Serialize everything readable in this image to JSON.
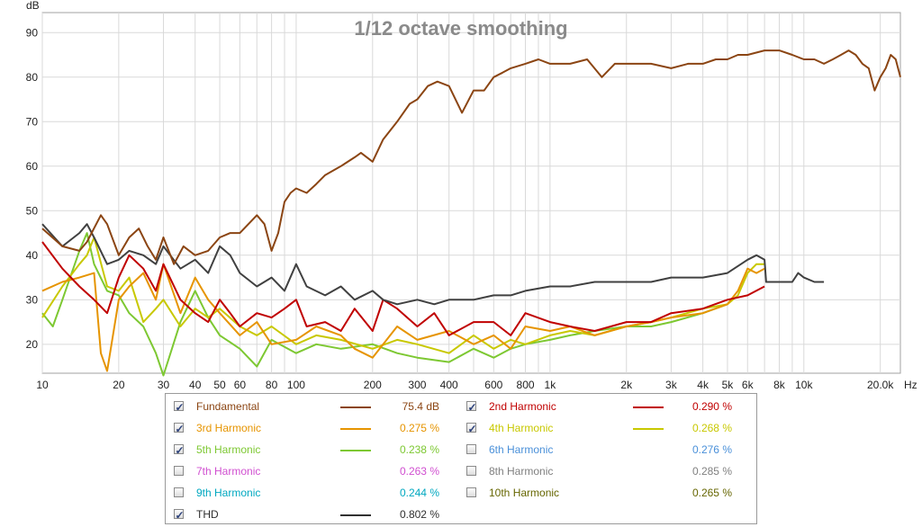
{
  "chart_data": {
    "type": "line",
    "title": "1/12 octave smoothing",
    "ylabel": "dB",
    "xunit": "Hz",
    "xscale": "log",
    "xlim": [
      10,
      24000
    ],
    "ylim": [
      13.5,
      94.5
    ],
    "grid": true,
    "yticks": [
      20,
      30,
      40,
      50,
      60,
      70,
      80,
      90
    ],
    "xticks": [
      {
        "v": 10,
        "label": "10"
      },
      {
        "v": 20,
        "label": "20"
      },
      {
        "v": 30,
        "label": "30"
      },
      {
        "v": 40,
        "label": "40"
      },
      {
        "v": 50,
        "label": "50"
      },
      {
        "v": 60,
        "label": "60"
      },
      {
        "v": 80,
        "label": "80"
      },
      {
        "v": 100,
        "label": "100"
      },
      {
        "v": 200,
        "label": "200"
      },
      {
        "v": 300,
        "label": "300"
      },
      {
        "v": 400,
        "label": "400"
      },
      {
        "v": 600,
        "label": "600"
      },
      {
        "v": 800,
        "label": "800"
      },
      {
        "v": 1000,
        "label": "1k"
      },
      {
        "v": 2000,
        "label": "2k"
      },
      {
        "v": 3000,
        "label": "3k"
      },
      {
        "v": 4000,
        "label": "4k"
      },
      {
        "v": 5000,
        "label": "5k"
      },
      {
        "v": 6000,
        "label": "6k"
      },
      {
        "v": 8000,
        "label": "8k"
      },
      {
        "v": 10000,
        "label": "10k"
      },
      {
        "v": 20000,
        "label": "20.0k"
      }
    ],
    "series": [
      {
        "name": "Fundamental",
        "color": "#8b4513",
        "x": [
          10,
          12,
          14,
          15,
          17,
          18,
          20,
          22,
          24,
          26,
          28,
          30,
          33,
          36,
          40,
          45,
          50,
          55,
          60,
          70,
          75,
          80,
          85,
          90,
          95,
          100,
          110,
          120,
          130,
          150,
          170,
          180,
          200,
          220,
          250,
          280,
          300,
          330,
          360,
          400,
          450,
          500,
          550,
          600,
          650,
          700,
          800,
          900,
          1000,
          1100,
          1200,
          1400,
          1600,
          1800,
          2000,
          2500,
          3000,
          3500,
          4000,
          4500,
          5000,
          5500,
          6000,
          7000,
          8000,
          9000,
          10000,
          11000,
          12000,
          13000,
          14000,
          15000,
          16000,
          17000,
          18000,
          19000,
          20000,
          21000,
          22000,
          23000,
          24000
        ],
        "y": [
          46,
          42,
          41,
          43,
          49,
          47,
          40,
          44,
          46,
          42,
          39,
          44,
          38,
          42,
          40,
          41,
          44,
          45,
          45,
          49,
          47,
          41,
          45,
          52,
          54,
          55,
          54,
          56,
          58,
          60,
          62,
          63,
          61,
          66,
          70,
          74,
          75,
          78,
          79,
          78,
          72,
          77,
          77,
          80,
          81,
          82,
          83,
          84,
          83,
          83,
          83,
          84,
          80,
          83,
          83,
          83,
          82,
          83,
          83,
          84,
          84,
          85,
          85,
          86,
          86,
          85,
          84,
          84,
          83,
          84,
          85,
          86,
          85,
          83,
          82,
          77,
          80,
          82,
          85,
          84,
          80
        ]
      },
      {
        "name": "2nd Harmonic",
        "color": "#c00000",
        "x": [
          10,
          12,
          14,
          16,
          18,
          20,
          22,
          25,
          28,
          30,
          35,
          40,
          45,
          50,
          55,
          60,
          70,
          80,
          90,
          100,
          110,
          130,
          150,
          170,
          200,
          220,
          250,
          300,
          350,
          400,
          500,
          600,
          700,
          800,
          1000,
          1200,
          1500,
          2000,
          2500,
          3000,
          4000,
          5000,
          6000,
          7000
        ],
        "y": [
          43,
          37,
          33,
          30,
          27,
          35,
          40,
          37,
          32,
          38,
          30,
          27,
          25,
          30,
          27,
          24,
          27,
          26,
          28,
          30,
          24,
          25,
          23,
          28,
          23,
          30,
          28,
          24,
          27,
          22,
          25,
          25,
          22,
          27,
          25,
          24,
          23,
          25,
          25,
          27,
          28,
          30,
          31,
          33
        ]
      },
      {
        "name": "3rd Harmonic",
        "color": "#e69400",
        "x": [
          10,
          12,
          14,
          16,
          17,
          18,
          20,
          22,
          25,
          28,
          30,
          35,
          40,
          45,
          50,
          60,
          70,
          80,
          100,
          120,
          150,
          170,
          200,
          250,
          300,
          400,
          500,
          600,
          700,
          800,
          1000,
          1200,
          1500,
          2000,
          2500,
          3000,
          4000,
          5000,
          5500,
          6000,
          6500,
          7000
        ],
        "y": [
          32,
          34,
          35,
          36,
          18,
          14,
          30,
          33,
          36,
          30,
          38,
          27,
          35,
          30,
          27,
          22,
          25,
          20,
          21,
          24,
          22,
          19,
          17,
          24,
          21,
          23,
          20,
          22,
          19,
          24,
          23,
          24,
          22,
          24,
          25,
          26,
          27,
          29,
          32,
          37,
          36,
          37
        ]
      },
      {
        "name": "4th Harmonic",
        "color": "#c8c800",
        "x": [
          10,
          12,
          14,
          15,
          16,
          18,
          20,
          22,
          25,
          28,
          30,
          35,
          40,
          45,
          50,
          60,
          70,
          80,
          100,
          120,
          150,
          200,
          250,
          300,
          400,
          500,
          600,
          700,
          800,
          1000,
          1200,
          1500,
          2000,
          2500,
          3000,
          4000,
          5000,
          5500,
          6000,
          6500,
          7000
        ],
        "y": [
          26,
          33,
          38,
          40,
          44,
          33,
          32,
          35,
          25,
          28,
          30,
          24,
          28,
          26,
          28,
          24,
          22,
          24,
          20,
          22,
          21,
          19,
          21,
          20,
          18,
          22,
          19,
          21,
          20,
          22,
          23,
          22,
          24,
          25,
          26,
          28,
          29,
          31,
          36,
          38,
          38
        ]
      },
      {
        "name": "5th Harmonic",
        "color": "#7dc832",
        "x": [
          10,
          11,
          12,
          14,
          15,
          16,
          18,
          20,
          22,
          25,
          28,
          30,
          35,
          40,
          45,
          50,
          60,
          70,
          80,
          100,
          120,
          150,
          200,
          250,
          300,
          400,
          500,
          600,
          700,
          800,
          1000,
          1200,
          1500,
          2000,
          2500,
          3000,
          4000,
          5000
        ],
        "y": [
          27,
          24,
          30,
          41,
          45,
          38,
          32,
          31,
          27,
          24,
          18,
          13,
          25,
          32,
          26,
          22,
          19,
          15,
          21,
          18,
          20,
          19,
          20,
          18,
          17,
          16,
          19,
          17,
          19,
          20,
          21,
          22,
          23,
          24,
          24,
          25,
          27,
          29
        ]
      },
      {
        "name": "THD",
        "color": "#404040",
        "x": [
          10,
          12,
          14,
          15,
          16,
          18,
          20,
          22,
          25,
          28,
          30,
          35,
          40,
          45,
          50,
          55,
          60,
          70,
          80,
          90,
          100,
          110,
          130,
          150,
          170,
          200,
          220,
          250,
          300,
          350,
          400,
          500,
          600,
          700,
          800,
          1000,
          1200,
          1500,
          2000,
          2500,
          3000,
          4000,
          5000,
          6000,
          6500,
          7000,
          7100,
          7200,
          8000,
          9000,
          9500,
          10000,
          11000,
          12000
        ],
        "y": [
          47,
          42,
          45,
          47,
          44,
          38,
          39,
          41,
          40,
          38,
          42,
          37,
          39,
          36,
          42,
          40,
          36,
          33,
          35,
          32,
          38,
          33,
          31,
          33,
          30,
          32,
          30,
          29,
          30,
          29,
          30,
          30,
          31,
          31,
          32,
          33,
          33,
          34,
          34,
          34,
          35,
          35,
          36,
          39,
          40,
          39,
          34,
          34,
          34,
          34,
          36,
          35,
          34,
          34
        ]
      }
    ]
  },
  "legend": [
    {
      "label": "Fundamental",
      "value": "75.4 dB",
      "color": "#8b4513",
      "checked": true,
      "line": true
    },
    {
      "label": "2nd Harmonic",
      "value": "0.290 %",
      "color": "#c00000",
      "checked": true,
      "line": true
    },
    {
      "label": "3rd Harmonic",
      "value": "0.275 %",
      "color": "#e69400",
      "checked": true,
      "line": true
    },
    {
      "label": "4th Harmonic",
      "value": "0.268 %",
      "color": "#c8c800",
      "checked": true,
      "line": true
    },
    {
      "label": "5th Harmonic",
      "value": "0.238 %",
      "color": "#7dc832",
      "checked": true,
      "line": true
    },
    {
      "label": "6th Harmonic",
      "value": "0.276 %",
      "color": "#4a90d9",
      "checked": false,
      "line": false
    },
    {
      "label": "7th Harmonic",
      "value": "0.263 %",
      "color": "#d04fd0",
      "checked": false,
      "line": false
    },
    {
      "label": "8th Harmonic",
      "value": "0.285 %",
      "color": "#808080",
      "checked": false,
      "line": false
    },
    {
      "label": "9th Harmonic",
      "value": "0.244 %",
      "color": "#00a8c0",
      "checked": false,
      "line": false
    },
    {
      "label": "10th Harmonic",
      "value": "0.265 %",
      "color": "#666600",
      "checked": false,
      "line": false
    },
    {
      "label": "THD",
      "value": "0.802 %",
      "color": "#303030",
      "checked": true,
      "line": true
    }
  ]
}
